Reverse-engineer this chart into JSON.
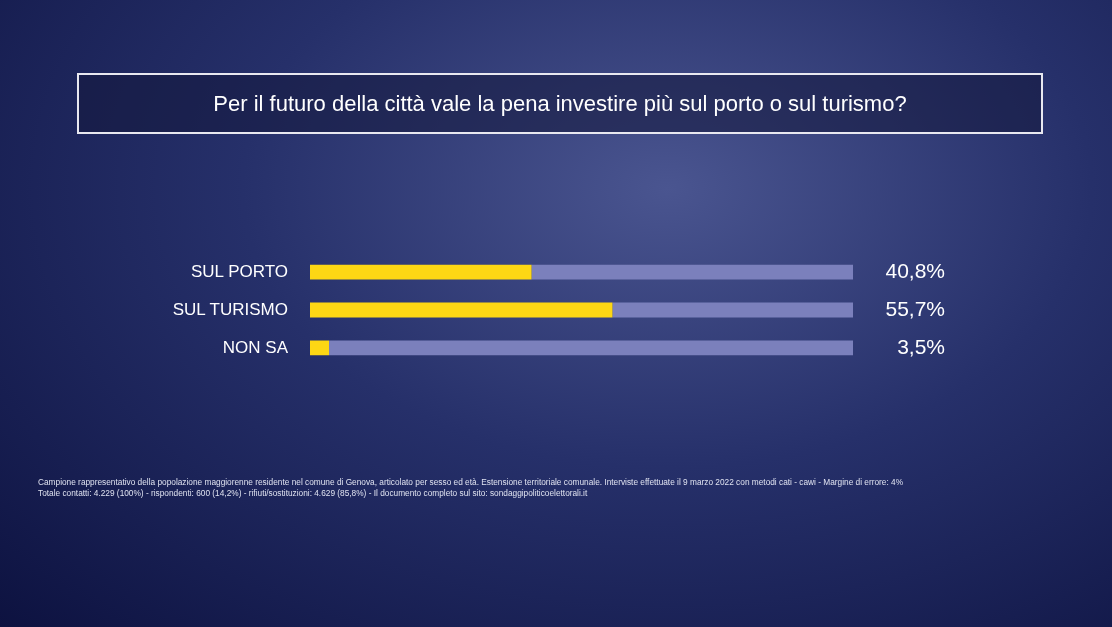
{
  "chart_data": {
    "type": "bar",
    "orientation": "horizontal",
    "title": "Per il futuro della città vale la pena investire più sul porto o sul turismo?",
    "categories": [
      "SUL PORTO",
      "SUL TURISMO",
      "NON SA"
    ],
    "series": [
      {
        "color": "#fdd714",
        "values": [
          40.8,
          55.7,
          3.5
        ],
        "value_labels": [
          "40,8%",
          "55,7%",
          "3,5%"
        ]
      },
      {
        "color": "#7b80bc",
        "values": [
          59.2,
          44.3,
          96.5
        ]
      }
    ],
    "stacked": true,
    "xlim": [
      0,
      100
    ],
    "tick_labels": "y",
    "legend": false,
    "annotations": [
      "Campione rappresentativo della popolazione maggiorenne residente nel comune di Genova, articolato per sesso ed età. Estensione territoriale comunale. Interviste effettuate il 9 marzo 2022 con metodi cati - cawi - Margine di errore: 4%",
      "Totale contatti: 4.229 (100%) - rispondenti: 600 (14,2%) - rifiuti/sostituzioni: 4.629 (85,8%) - Il documento completo sul sito: sondaggipoliticoelettorali.it"
    ]
  }
}
